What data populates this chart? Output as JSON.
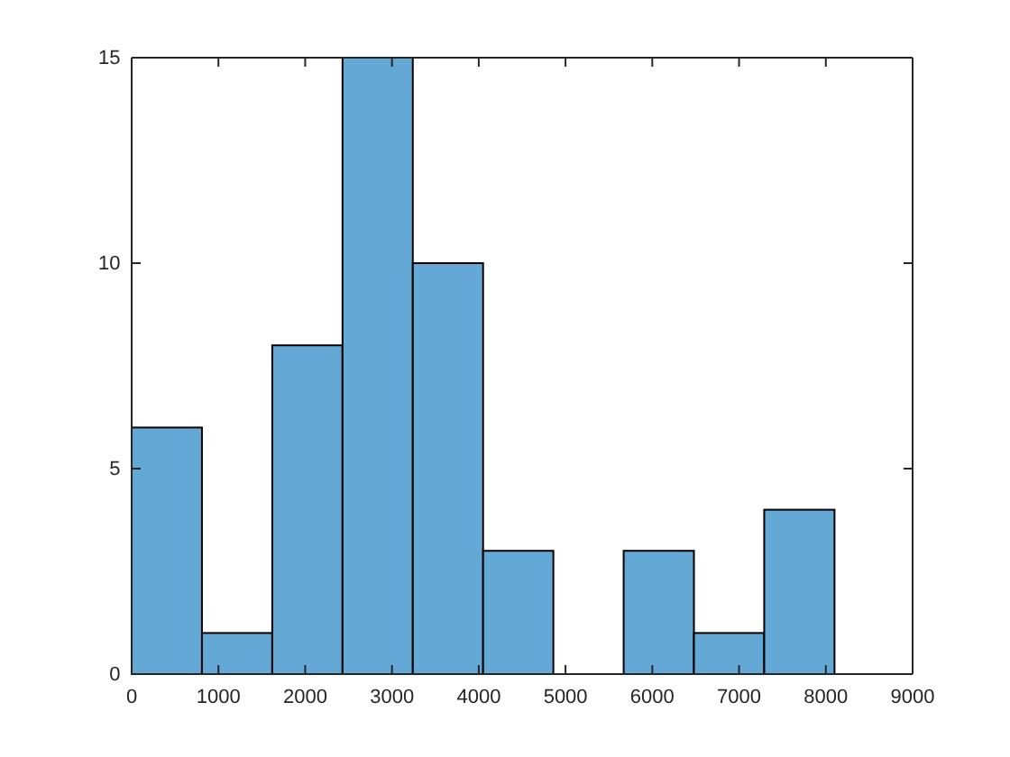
{
  "chart_data": {
    "type": "histogram",
    "bins": [
      0,
      810,
      1620,
      2430,
      3240,
      4050,
      4860,
      5670,
      6480,
      7290,
      8100
    ],
    "values": [
      6,
      1,
      8,
      15,
      10,
      3,
      0,
      3,
      1,
      4
    ],
    "color": "#64a8d6",
    "xlim": [
      0,
      9000
    ],
    "xticks": [
      0,
      1000,
      2000,
      3000,
      4000,
      5000,
      6000,
      7000,
      8000,
      9000
    ],
    "ylim": [
      0,
      15
    ],
    "yticks": [
      0,
      5,
      10,
      15
    ],
    "grid": false
  }
}
